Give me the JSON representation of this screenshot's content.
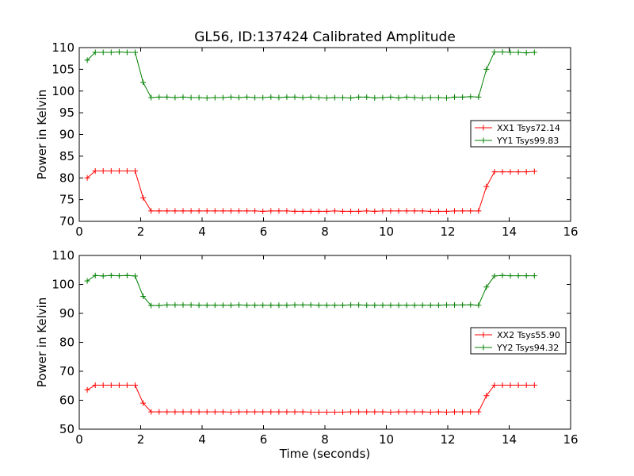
{
  "chart_data": [
    {
      "type": "line",
      "title": "GL56, ID:137424 Calibrated Amplitude",
      "xlabel": "",
      "ylabel": "Power in Kelvin",
      "xlim": [
        0,
        16
      ],
      "ylim": [
        70,
        110
      ],
      "xticks": [
        "0",
        "2",
        "4",
        "6",
        "8",
        "10",
        "12",
        "14",
        "16"
      ],
      "yticks": [
        "70",
        "75",
        "80",
        "85",
        "90",
        "95",
        "100",
        "105",
        "110"
      ],
      "legend_position": "center-right",
      "grid": false,
      "x": [
        0.26,
        0.52,
        0.78,
        1.04,
        1.3,
        1.56,
        1.82,
        2.08,
        2.34,
        2.6,
        2.86,
        3.12,
        3.38,
        3.64,
        3.9,
        4.16,
        4.42,
        4.68,
        4.94,
        5.2,
        5.46,
        5.72,
        5.98,
        6.24,
        6.5,
        6.76,
        7.02,
        7.28,
        7.54,
        7.8,
        8.06,
        8.32,
        8.58,
        8.84,
        9.1,
        9.36,
        9.62,
        9.88,
        10.14,
        10.4,
        10.66,
        10.92,
        11.18,
        11.44,
        11.7,
        11.96,
        12.22,
        12.48,
        12.74,
        13.0,
        13.26,
        13.52,
        13.78,
        14.04,
        14.3,
        14.56,
        14.82
      ],
      "series": [
        {
          "name": "XX1 Tsys72.14",
          "color": "#ff0000",
          "values": [
            80.0,
            81.6,
            81.6,
            81.6,
            81.6,
            81.6,
            81.6,
            75.4,
            72.4,
            72.4,
            72.4,
            72.4,
            72.4,
            72.4,
            72.4,
            72.4,
            72.4,
            72.4,
            72.4,
            72.4,
            72.4,
            72.4,
            72.3,
            72.4,
            72.4,
            72.4,
            72.3,
            72.3,
            72.3,
            72.3,
            72.3,
            72.4,
            72.3,
            72.3,
            72.3,
            72.4,
            72.3,
            72.4,
            72.4,
            72.4,
            72.4,
            72.4,
            72.4,
            72.3,
            72.3,
            72.3,
            72.4,
            72.4,
            72.4,
            72.4,
            78.0,
            81.4,
            81.4,
            81.4,
            81.4,
            81.4,
            81.5
          ]
        },
        {
          "name": "YY1 Tsys99.83",
          "color": "#008000",
          "values": [
            107.1,
            108.9,
            108.9,
            108.9,
            109.0,
            108.9,
            108.9,
            102.0,
            98.5,
            98.6,
            98.6,
            98.5,
            98.6,
            98.5,
            98.5,
            98.4,
            98.5,
            98.5,
            98.6,
            98.5,
            98.6,
            98.5,
            98.5,
            98.6,
            98.5,
            98.6,
            98.6,
            98.5,
            98.6,
            98.5,
            98.4,
            98.5,
            98.5,
            98.4,
            98.6,
            98.6,
            98.4,
            98.5,
            98.6,
            98.4,
            98.6,
            98.5,
            98.4,
            98.5,
            98.5,
            98.4,
            98.6,
            98.6,
            98.7,
            98.6,
            105.0,
            109.0,
            109.0,
            108.9,
            108.9,
            108.8,
            108.9
          ]
        }
      ]
    },
    {
      "type": "line",
      "title": "",
      "xlabel": "Time (seconds)",
      "ylabel": "Power in Kelvin",
      "xlim": [
        0,
        16
      ],
      "ylim": [
        50,
        110
      ],
      "xticks": [
        "0",
        "2",
        "4",
        "6",
        "8",
        "10",
        "12",
        "14",
        "16"
      ],
      "yticks": [
        "50",
        "60",
        "70",
        "80",
        "90",
        "100",
        "110"
      ],
      "legend_position": "center-right",
      "grid": false,
      "x": [
        0.26,
        0.52,
        0.78,
        1.04,
        1.3,
        1.56,
        1.82,
        2.08,
        2.34,
        2.6,
        2.86,
        3.12,
        3.38,
        3.64,
        3.9,
        4.16,
        4.42,
        4.68,
        4.94,
        5.2,
        5.46,
        5.72,
        5.98,
        6.24,
        6.5,
        6.76,
        7.02,
        7.28,
        7.54,
        7.8,
        8.06,
        8.32,
        8.58,
        8.84,
        9.1,
        9.36,
        9.62,
        9.88,
        10.14,
        10.4,
        10.66,
        10.92,
        11.18,
        11.44,
        11.7,
        11.96,
        12.22,
        12.48,
        12.74,
        13.0,
        13.26,
        13.52,
        13.78,
        14.04,
        14.3,
        14.56,
        14.82
      ],
      "series": [
        {
          "name": "XX2 Tsys55.90",
          "color": "#ff0000",
          "values": [
            63.6,
            65.2,
            65.2,
            65.2,
            65.2,
            65.2,
            65.2,
            59.0,
            56.0,
            56.0,
            56.0,
            56.0,
            56.0,
            56.0,
            56.0,
            56.0,
            56.0,
            56.0,
            55.9,
            56.0,
            56.0,
            56.0,
            56.0,
            56.0,
            56.0,
            56.0,
            56.0,
            56.0,
            55.9,
            55.9,
            55.9,
            55.9,
            55.9,
            56.0,
            56.0,
            56.0,
            56.0,
            56.0,
            55.9,
            56.0,
            56.0,
            56.0,
            56.0,
            55.9,
            56.0,
            55.9,
            56.0,
            56.0,
            56.0,
            56.0,
            61.6,
            65.2,
            65.2,
            65.2,
            65.2,
            65.2,
            65.2
          ]
        },
        {
          "name": "YY2 Tsys94.32",
          "color": "#008000",
          "values": [
            101.2,
            103.1,
            102.9,
            103.1,
            103.0,
            103.1,
            102.9,
            95.9,
            92.7,
            92.7,
            92.9,
            92.9,
            92.9,
            92.9,
            92.8,
            92.8,
            92.8,
            92.8,
            92.8,
            92.9,
            92.8,
            92.8,
            92.8,
            92.8,
            92.8,
            92.8,
            92.9,
            92.9,
            92.9,
            92.8,
            92.8,
            92.8,
            92.8,
            92.9,
            92.9,
            92.8,
            92.8,
            92.8,
            92.8,
            92.8,
            92.8,
            92.8,
            92.8,
            92.8,
            92.8,
            92.9,
            92.9,
            92.9,
            93.0,
            92.8,
            99.1,
            102.9,
            103.1,
            103.0,
            103.0,
            103.0,
            103.0
          ]
        }
      ]
    }
  ]
}
